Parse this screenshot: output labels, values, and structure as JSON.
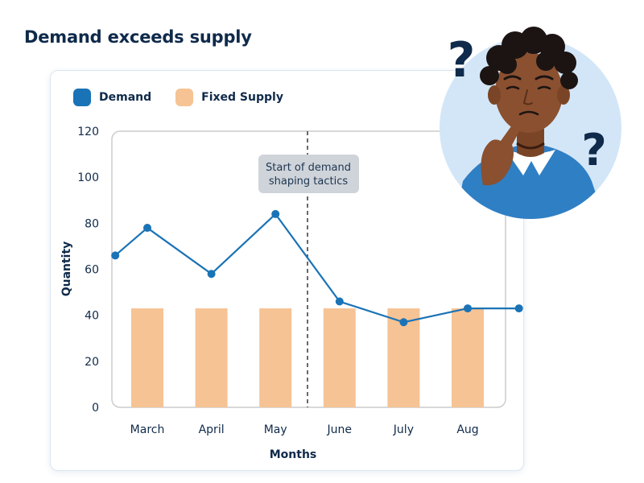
{
  "title": "Demand exceeds supply",
  "colors": {
    "demand": "#1a73b6",
    "supply": "#f6c394",
    "annotation_bg": "#cfd4da",
    "divider": "#444444",
    "gridline": "#cccccc"
  },
  "illustration": {
    "subject": "confused-person-illustration",
    "marks": [
      "?",
      "?"
    ]
  },
  "chart_data": {
    "type": "bar",
    "categories": [
      "March",
      "April",
      "May",
      "June",
      "July",
      "Aug"
    ],
    "x_label": "Months",
    "y_label": "Quantity",
    "ylim": [
      0,
      120
    ],
    "y_ticks": [
      0,
      20,
      40,
      60,
      80,
      100,
      120
    ],
    "legend": [
      {
        "name": "Demand",
        "color": "#1a73b6"
      },
      {
        "name": "Fixed Supply",
        "color": "#f6c394"
      }
    ],
    "legend_position": "top-left",
    "grid": false,
    "series": [
      {
        "name": "Fixed Supply",
        "type": "bar",
        "values": [
          43,
          43,
          43,
          43,
          43,
          43
        ]
      },
      {
        "name": "Demand",
        "type": "line",
        "x": [
          2.5,
          3,
          4,
          5,
          6,
          7,
          8,
          8.8
        ],
        "values": [
          66,
          78,
          58,
          84,
          46,
          37,
          43,
          43
        ]
      }
    ],
    "annotation": {
      "text_lines": [
        "Start of demand",
        "shaping tactics"
      ],
      "divider_after": "May"
    }
  }
}
